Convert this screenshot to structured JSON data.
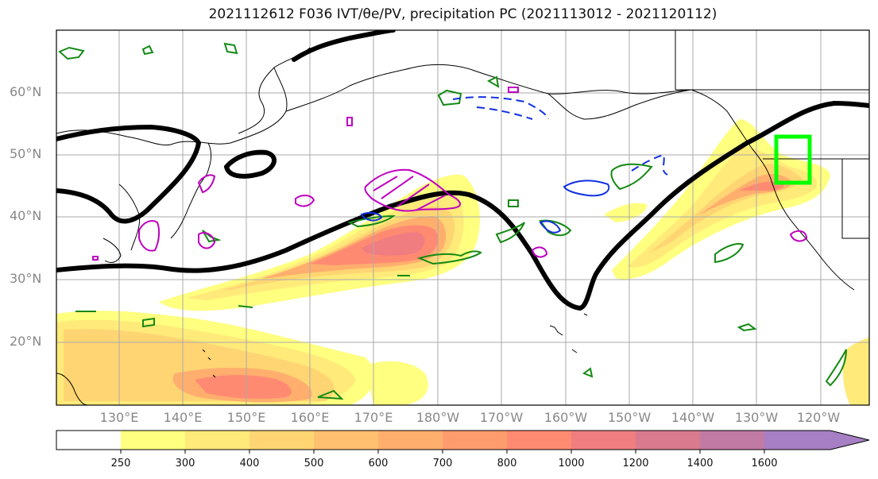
{
  "title": "2021112612 F036 IVT/θe/PV, precipitation PC (2021113012 - 2021120112)",
  "map": {
    "lat_labels": [
      "60°N",
      "50°N",
      "40°N",
      "30°N",
      "20°N"
    ],
    "lon_labels": [
      "130°E",
      "140°E",
      "150°E",
      "160°E",
      "170°E",
      "180°W",
      "170°W",
      "160°W",
      "150°W",
      "140°W",
      "130°W",
      "120°W"
    ],
    "grid": true,
    "highlight_box_color": "#00ff00"
  },
  "colorbar": {
    "tick_labels": [
      "250",
      "300",
      "400",
      "500",
      "600",
      "700",
      "800",
      "1000",
      "1200",
      "1400",
      "1600"
    ],
    "colors": [
      "#ffffff",
      "#ffff80",
      "#ffea7a",
      "#ffd573",
      "#ffc070",
      "#ffae6e",
      "#ff9c6e",
      "#ff8a72",
      "#f07e80",
      "#d97a8e",
      "#c17aa4",
      "#a67fc4"
    ],
    "extend": "max"
  }
}
